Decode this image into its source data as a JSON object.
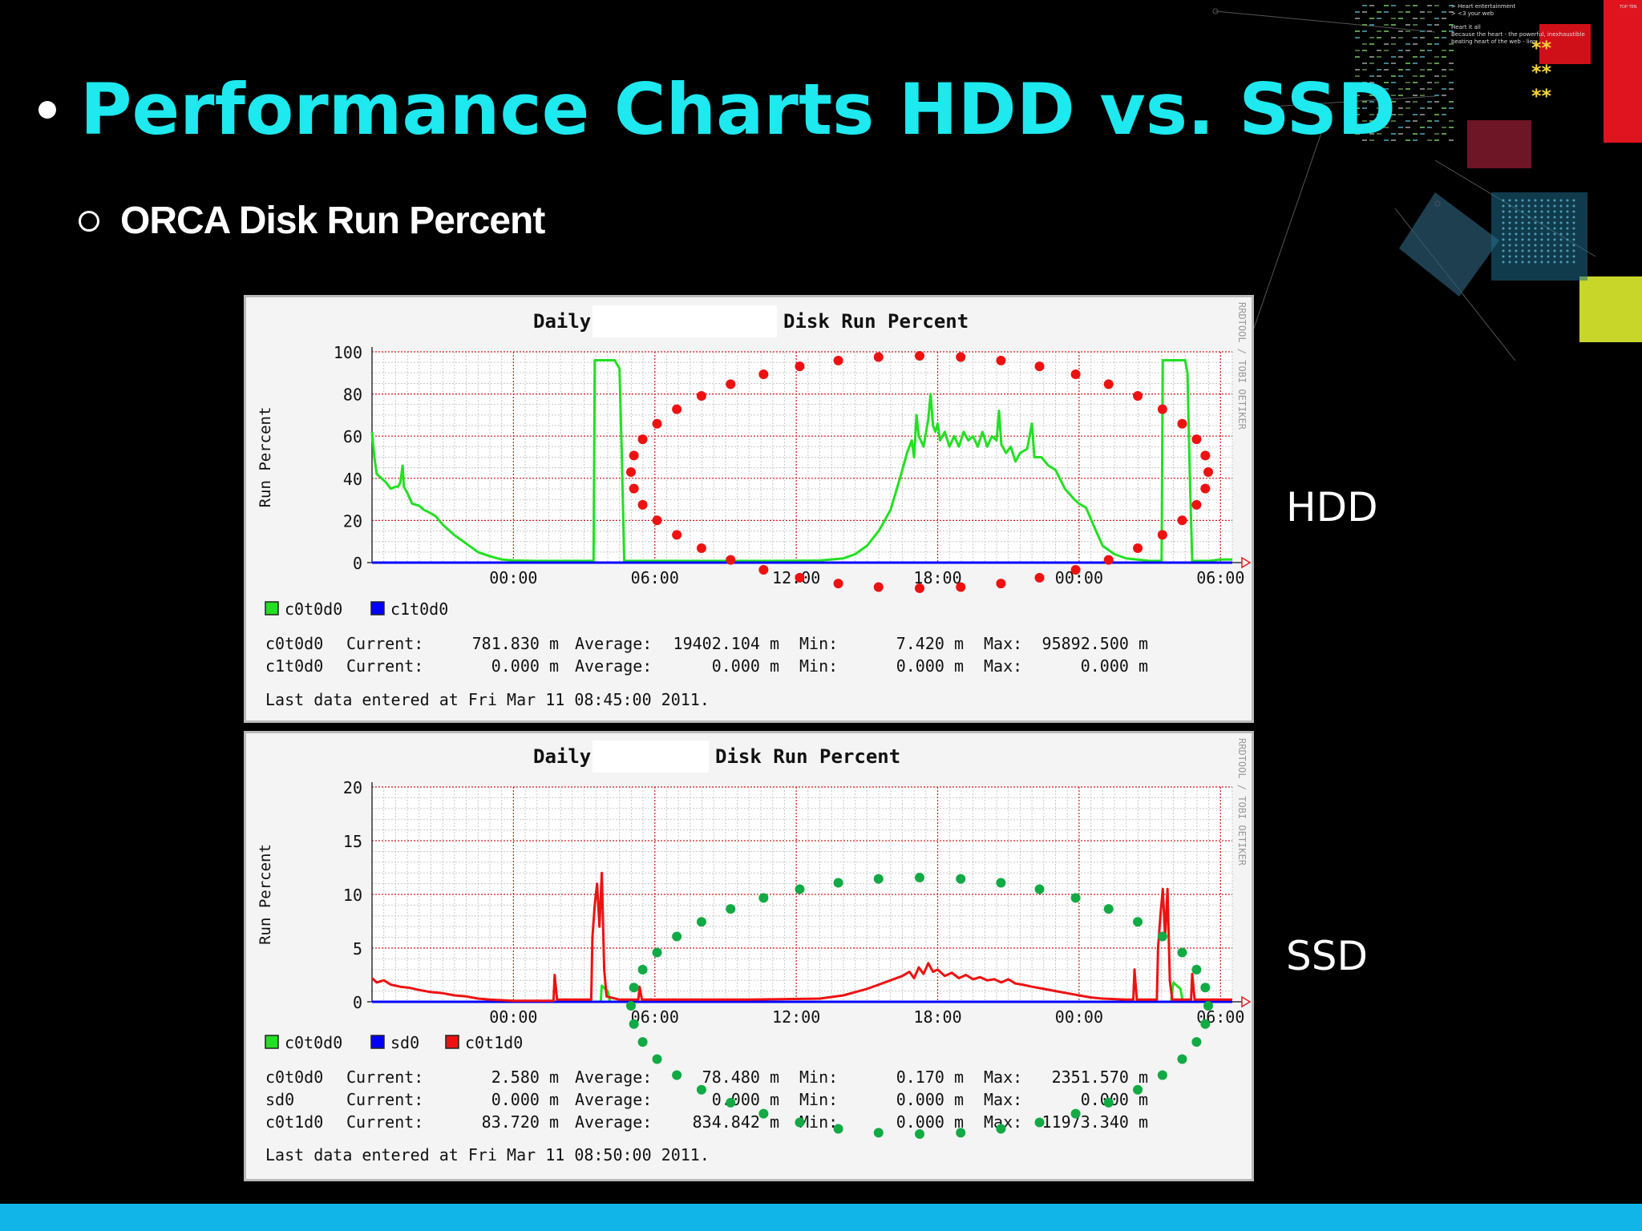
{
  "slide": {
    "title": "Performance Charts HDD vs. SSD",
    "subtitle": "ORCA Disk Run Percent",
    "label_hdd": "HDD",
    "label_ssd": "SSD",
    "accent_color": "#1de9ef",
    "footer_color": "#11b5e8",
    "deco_text": [
      "> Heart entertainment",
      ">  <3 your web",
      "Heart it all",
      "Because the heart - the powerful, inexhaustible",
      "beating heart of the web - lies"
    ],
    "deco_badge": "TOP TEN"
  },
  "chart_data": [
    {
      "type": "line",
      "title_left": "Daily",
      "title_right": "Disk Run Percent",
      "ylabel": "Run Percent",
      "ylim": [
        0,
        100
      ],
      "yticks": [
        0,
        20,
        40,
        60,
        80,
        100
      ],
      "xlim": [
        -3,
        33.5
      ],
      "xticks": [
        {
          "label": "00:00",
          "at": 3
        },
        {
          "label": "06:00",
          "at": 9
        },
        {
          "label": "12:00",
          "at": 15
        },
        {
          "label": "18:00",
          "at": 21
        },
        {
          "label": "00:00",
          "at": 27
        },
        {
          "label": "06:00",
          "at": 33
        }
      ],
      "side_text": "RRDTOOL / TOBI OETIKER",
      "grid": true,
      "series": [
        {
          "name": "c0t0d0",
          "color": "#22e022",
          "points": [
            [
              -3,
              62
            ],
            [
              -2.9,
              50
            ],
            [
              -2.8,
              42
            ],
            [
              -2.6,
              40
            ],
            [
              -2.4,
              38
            ],
            [
              -2.2,
              35
            ],
            [
              -2.0,
              36
            ],
            [
              -1.9,
              36
            ],
            [
              -1.8,
              38
            ],
            [
              -1.7,
              46
            ],
            [
              -1.65,
              36
            ],
            [
              -1.5,
              33
            ],
            [
              -1.3,
              28
            ],
            [
              -1.0,
              27
            ],
            [
              -0.8,
              25
            ],
            [
              -0.6,
              24
            ],
            [
              -0.3,
              22
            ],
            [
              0,
              18
            ],
            [
              0.5,
              13
            ],
            [
              1,
              9
            ],
            [
              1.5,
              5
            ],
            [
              2,
              3
            ],
            [
              2.5,
              1.5
            ],
            [
              3,
              1
            ],
            [
              4,
              0.8
            ],
            [
              5,
              0.8
            ],
            [
              6.4,
              0.8
            ],
            [
              6.45,
              96
            ],
            [
              7.3,
              96
            ],
            [
              7.5,
              92
            ],
            [
              7.6,
              50
            ],
            [
              7.7,
              0.8
            ],
            [
              8,
              0.8
            ],
            [
              10,
              0.8
            ],
            [
              12,
              0.8
            ],
            [
              14,
              0.8
            ],
            [
              16,
              1
            ],
            [
              17,
              2
            ],
            [
              17.5,
              4
            ],
            [
              18,
              8
            ],
            [
              18.5,
              15
            ],
            [
              19,
              25
            ],
            [
              19.4,
              40
            ],
            [
              19.7,
              52
            ],
            [
              19.9,
              58
            ],
            [
              20.0,
              50
            ],
            [
              20.1,
              70
            ],
            [
              20.2,
              60
            ],
            [
              20.4,
              55
            ],
            [
              20.6,
              68
            ],
            [
              20.7,
              80
            ],
            [
              20.8,
              65
            ],
            [
              20.9,
              62
            ],
            [
              21.0,
              66
            ],
            [
              21.1,
              58
            ],
            [
              21.3,
              62
            ],
            [
              21.5,
              55
            ],
            [
              21.7,
              60
            ],
            [
              21.9,
              55
            ],
            [
              22.1,
              62
            ],
            [
              22.3,
              58
            ],
            [
              22.5,
              60
            ],
            [
              22.7,
              55
            ],
            [
              22.9,
              62
            ],
            [
              23.1,
              55
            ],
            [
              23.3,
              60
            ],
            [
              23.5,
              58
            ],
            [
              23.6,
              72
            ],
            [
              23.7,
              56
            ],
            [
              23.9,
              52
            ],
            [
              24.1,
              55
            ],
            [
              24.3,
              48
            ],
            [
              24.5,
              52
            ],
            [
              24.8,
              54
            ],
            [
              25.0,
              66
            ],
            [
              25.1,
              50
            ],
            [
              25.4,
              50
            ],
            [
              25.7,
              46
            ],
            [
              26.0,
              44
            ],
            [
              26.4,
              35
            ],
            [
              26.8,
              30
            ],
            [
              27.0,
              28
            ],
            [
              27.3,
              26
            ],
            [
              27.6,
              18
            ],
            [
              28,
              8
            ],
            [
              28.5,
              4
            ],
            [
              29,
              2
            ],
            [
              30,
              0.8
            ],
            [
              30.5,
              0.8
            ],
            [
              30.55,
              96
            ],
            [
              31.5,
              96
            ],
            [
              31.6,
              90
            ],
            [
              31.7,
              40
            ],
            [
              31.8,
              0.8
            ],
            [
              32.5,
              0.8
            ],
            [
              33,
              1.5
            ],
            [
              33.5,
              1.5
            ]
          ]
        },
        {
          "name": "c1t0d0",
          "color": "#0000ff",
          "points": [
            [
              -3,
              0
            ],
            [
              33.5,
              0
            ]
          ]
        }
      ],
      "legend": [
        {
          "name": "c0t0d0",
          "color": "#22e022"
        },
        {
          "name": "c1t0d0",
          "color": "#0000ff"
        }
      ],
      "stats": [
        {
          "name": "c0t0d0",
          "current": "781.830 m",
          "average": "19402.104 m",
          "min": "7.420 m",
          "max": "95892.500 m"
        },
        {
          "name": "c1t0d0",
          "current": "0.000 m",
          "average": "0.000 m",
          "min": "0.000 m",
          "max": "0.000 m"
        }
      ],
      "labels": {
        "current": "Current:",
        "average": "Average:",
        "min": "Min:",
        "max": "Max:"
      },
      "last_entry": "Last data entered at Fri Mar 11 08:45:00 2011.",
      "highlight_color": "#ee1111"
    },
    {
      "type": "line",
      "title_left": "Daily",
      "title_right": "Disk Run Percent",
      "ylabel": "Run Percent",
      "ylim": [
        0,
        20
      ],
      "yticks": [
        0,
        5,
        10,
        15,
        20
      ],
      "xlim": [
        -3,
        33.5
      ],
      "xticks": [
        {
          "label": "00:00",
          "at": 3
        },
        {
          "label": "06:00",
          "at": 9
        },
        {
          "label": "12:00",
          "at": 15
        },
        {
          "label": "18:00",
          "at": 21
        },
        {
          "label": "00:00",
          "at": 27
        },
        {
          "label": "06:00",
          "at": 33
        }
      ],
      "side_text": "RRDTOOL / TOBI OETIKER",
      "grid": true,
      "series": [
        {
          "name": "c0t0d0",
          "color": "#22e022",
          "points": [
            [
              -3,
              0
            ],
            [
              6.7,
              0
            ],
            [
              6.75,
              1.5
            ],
            [
              7.0,
              1.0
            ],
            [
              7.1,
              0
            ],
            [
              30.9,
              0
            ],
            [
              31.0,
              1.8
            ],
            [
              31.3,
              1.2
            ],
            [
              31.4,
              0
            ],
            [
              33.5,
              0
            ]
          ]
        },
        {
          "name": "sd0",
          "color": "#0000ff",
          "points": [
            [
              -3,
              0
            ],
            [
              33.5,
              0
            ]
          ]
        },
        {
          "name": "c0t1d0",
          "color": "#ee1111",
          "points": [
            [
              -3,
              2.2
            ],
            [
              -2.8,
              1.8
            ],
            [
              -2.5,
              2.0
            ],
            [
              -2.2,
              1.6
            ],
            [
              -1.8,
              1.4
            ],
            [
              -1.4,
              1.3
            ],
            [
              -1.0,
              1.1
            ],
            [
              -0.5,
              0.9
            ],
            [
              0,
              0.8
            ],
            [
              0.5,
              0.6
            ],
            [
              1,
              0.5
            ],
            [
              1.5,
              0.3
            ],
            [
              2,
              0.2
            ],
            [
              3,
              0.1
            ],
            [
              4.7,
              0.1
            ],
            [
              4.75,
              2.5
            ],
            [
              4.85,
              0.2
            ],
            [
              6.3,
              0.2
            ],
            [
              6.35,
              6
            ],
            [
              6.45,
              9
            ],
            [
              6.55,
              11
            ],
            [
              6.65,
              7
            ],
            [
              6.75,
              12
            ],
            [
              6.85,
              3
            ],
            [
              6.95,
              0.5
            ],
            [
              7.5,
              0.2
            ],
            [
              8.3,
              0.2
            ],
            [
              8.35,
              1.4
            ],
            [
              8.45,
              0.2
            ],
            [
              13,
              0.2
            ],
            [
              16,
              0.3
            ],
            [
              17,
              0.6
            ],
            [
              17.5,
              0.9
            ],
            [
              18,
              1.2
            ],
            [
              18.5,
              1.6
            ],
            [
              19,
              2.0
            ],
            [
              19.5,
              2.4
            ],
            [
              19.8,
              2.8
            ],
            [
              20.0,
              2.2
            ],
            [
              20.2,
              3.2
            ],
            [
              20.4,
              2.6
            ],
            [
              20.6,
              3.6
            ],
            [
              20.8,
              2.8
            ],
            [
              21.0,
              3.0
            ],
            [
              21.3,
              2.4
            ],
            [
              21.6,
              2.7
            ],
            [
              21.9,
              2.2
            ],
            [
              22.2,
              2.5
            ],
            [
              22.5,
              2.1
            ],
            [
              22.8,
              2.3
            ],
            [
              23.1,
              2.0
            ],
            [
              23.4,
              2.1
            ],
            [
              23.7,
              1.8
            ],
            [
              24.0,
              2.1
            ],
            [
              24.3,
              1.7
            ],
            [
              24.6,
              1.6
            ],
            [
              25.0,
              1.4
            ],
            [
              25.5,
              1.2
            ],
            [
              26.0,
              1.0
            ],
            [
              26.5,
              0.8
            ],
            [
              27,
              0.6
            ],
            [
              27.5,
              0.4
            ],
            [
              28,
              0.3
            ],
            [
              29,
              0.2
            ],
            [
              29.3,
              0.2
            ],
            [
              29.35,
              3.0
            ],
            [
              29.45,
              0.2
            ],
            [
              30.3,
              0.2
            ],
            [
              30.35,
              5
            ],
            [
              30.45,
              8
            ],
            [
              30.55,
              10.5
            ],
            [
              30.65,
              6
            ],
            [
              30.75,
              10.5
            ],
            [
              30.85,
              2
            ],
            [
              30.95,
              0.2
            ],
            [
              31.5,
              0.2
            ],
            [
              31.75,
              0.2
            ],
            [
              31.8,
              2.6
            ],
            [
              31.9,
              0.2
            ],
            [
              33.5,
              0.2
            ]
          ]
        }
      ],
      "legend": [
        {
          "name": "c0t0d0",
          "color": "#22e022"
        },
        {
          "name": "sd0",
          "color": "#0000ff"
        },
        {
          "name": "c0t1d0",
          "color": "#ee1111"
        }
      ],
      "stats": [
        {
          "name": "c0t0d0",
          "current": "2.580 m",
          "average": "78.480 m",
          "min": "0.170 m",
          "max": "2351.570 m"
        },
        {
          "name": "sd0",
          "current": "0.000 m",
          "average": "0.000 m",
          "min": "0.000 m",
          "max": "0.000 m"
        },
        {
          "name": "c0t1d0",
          "current": "83.720 m",
          "average": "834.842 m",
          "min": "0.000 m",
          "max": "11973.340 m"
        }
      ],
      "labels": {
        "current": "Current:",
        "average": "Average:",
        "min": "Min:",
        "max": "Max:"
      },
      "last_entry": "Last data entered at Fri Mar 11 08:50:00 2011.",
      "highlight_color": "#11aa44"
    }
  ]
}
